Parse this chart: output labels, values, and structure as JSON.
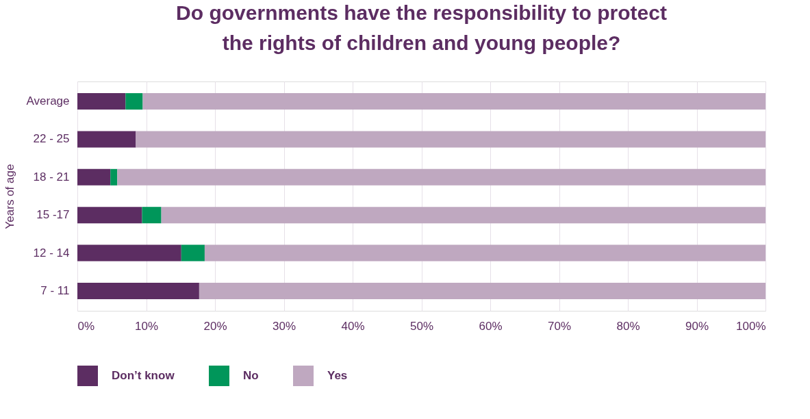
{
  "chart_data": {
    "type": "bar",
    "orientation": "horizontal",
    "stacked": true,
    "title": "Do governments have the responsibility to protect\nthe rights of children and young people?",
    "ylabel": "Years of age",
    "categories": [
      "Average",
      "22 - 25",
      "18 - 21",
      "15 -17",
      "12 - 14",
      "7 - 11"
    ],
    "series": [
      {
        "name": "Don’t know",
        "color": "#5c2d62",
        "values": [
          7.0,
          8.5,
          4.8,
          9.4,
          15.1,
          17.7
        ]
      },
      {
        "name": "No",
        "color": "#00965a",
        "values": [
          2.5,
          null,
          1.0,
          2.8,
          3.4,
          null
        ]
      },
      {
        "name": "Yes",
        "color": "#bfa8c0",
        "values": [
          90.5,
          91.5,
          94.2,
          87.8,
          81.5,
          82.3
        ]
      }
    ],
    "xlim": [
      0,
      100
    ],
    "xticks": [
      {
        "value": 0,
        "label": "0%"
      },
      {
        "value": 10,
        "label": "10%"
      },
      {
        "value": 20,
        "label": "20%"
      },
      {
        "value": 30,
        "label": "30%"
      },
      {
        "value": 40,
        "label": "40%"
      },
      {
        "value": 50,
        "label": "50%"
      },
      {
        "value": 60,
        "label": "60%"
      },
      {
        "value": 70,
        "label": "70%"
      },
      {
        "value": 80,
        "label": "80%"
      },
      {
        "value": 90,
        "label": "90%"
      },
      {
        "value": 100,
        "label": "100%"
      }
    ],
    "grid": "x",
    "legend": "bottom"
  }
}
